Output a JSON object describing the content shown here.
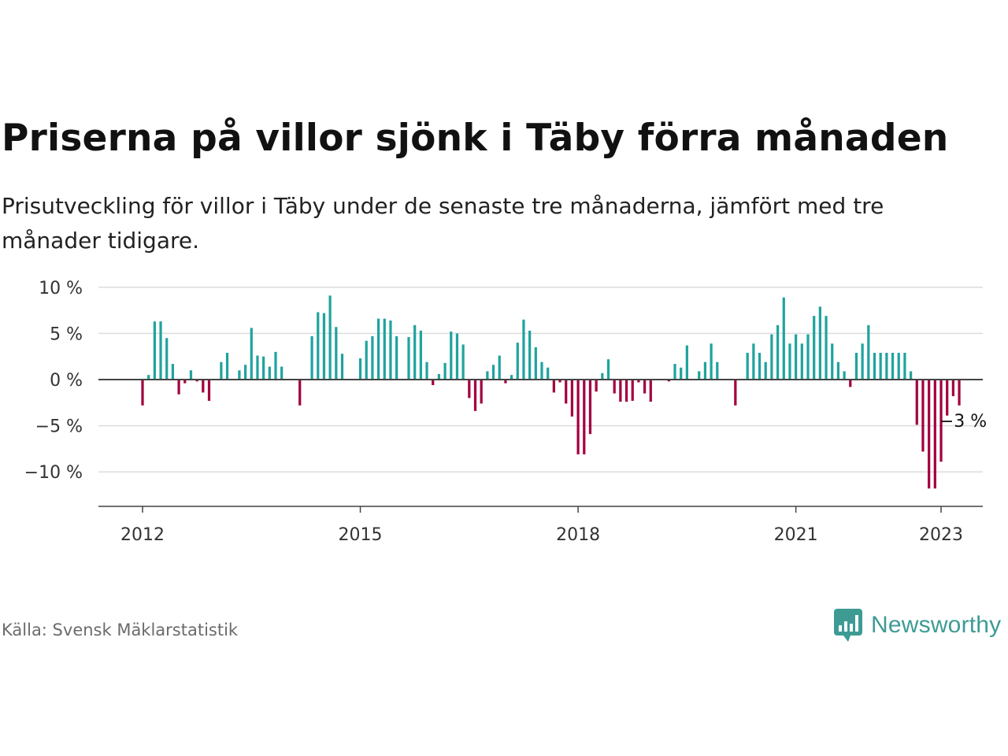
{
  "title": "Priserna på villor sjönk i Täby förra månaden",
  "subtitle": "Prisutveckling för villor i Täby under de senaste tre månaderna, jämfört med tre månader tidigare.",
  "source": "Källa: Svensk Mäklarstatistik",
  "brand": {
    "name": "Newsworthy",
    "icon": "newsworthy-logo-icon",
    "color": "#3d9b94"
  },
  "chart_data": {
    "type": "bar",
    "x_start": "2012-01",
    "x_end": "2023-01",
    "ylim": [
      -13.5,
      10
    ],
    "yticks": [
      {
        "value": 10,
        "label": "10 %"
      },
      {
        "value": 5,
        "label": "5 %"
      },
      {
        "value": 0,
        "label": "0 %"
      },
      {
        "value": -5,
        "label": "−5 %"
      },
      {
        "value": -10,
        "label": "−10 %"
      }
    ],
    "xticks": [
      {
        "date": "2012-01",
        "label": "2012"
      },
      {
        "date": "2015-01",
        "label": "2015"
      },
      {
        "date": "2018-01",
        "label": "2018"
      },
      {
        "date": "2021-01",
        "label": "2021"
      },
      {
        "date": "2023-01",
        "label": "2023"
      }
    ],
    "positive_color": "#20a39e",
    "negative_color": "#a3003f",
    "grid": true,
    "annotation": {
      "date": "2023-01",
      "label": "−3 %"
    },
    "values": [
      -2.8,
      0.5,
      6.3,
      6.3,
      4.5,
      1.7,
      -1.6,
      -0.4,
      1.0,
      -0.2,
      -1.4,
      -2.3,
      0.0,
      1.9,
      2.9,
      0.0,
      1.0,
      1.6,
      5.6,
      2.6,
      2.5,
      1.4,
      3.0,
      1.4,
      0.0,
      0.0,
      -2.8,
      0.0,
      4.7,
      7.3,
      7.2,
      9.1,
      5.7,
      2.8,
      0.0,
      0.0,
      2.3,
      4.2,
      4.7,
      6.6,
      6.6,
      6.4,
      4.7,
      0.0,
      4.6,
      5.9,
      5.3,
      1.9,
      -0.6,
      0.6,
      1.8,
      5.2,
      5.0,
      3.8,
      -2.0,
      -3.4,
      -2.6,
      0.9,
      1.6,
      2.6,
      -0.4,
      0.5,
      4.0,
      6.5,
      5.3,
      3.5,
      1.9,
      1.3,
      -1.4,
      -0.3,
      -2.6,
      -4.0,
      -8.1,
      -8.1,
      -5.9,
      -1.3,
      0.7,
      2.2,
      -1.5,
      -2.4,
      -2.4,
      -2.3,
      -0.3,
      -1.5,
      -2.4,
      0.0,
      0.0,
      -0.2,
      1.7,
      1.3,
      3.7,
      0.0,
      0.9,
      1.9,
      3.9,
      1.9,
      0.0,
      0.0,
      -2.8,
      0.0,
      2.9,
      3.9,
      2.9,
      1.9,
      4.9,
      5.9,
      8.9,
      3.9,
      4.9,
      3.9,
      4.9,
      6.9,
      7.9,
      6.9,
      3.9,
      1.9,
      0.9,
      -0.8,
      2.9,
      3.9,
      5.9,
      2.9,
      2.9,
      2.9,
      2.9,
      2.9,
      2.9,
      0.9,
      -4.9,
      -7.8,
      -11.8,
      -11.8,
      -8.9,
      -3.9,
      -1.8,
      -2.8
    ]
  }
}
